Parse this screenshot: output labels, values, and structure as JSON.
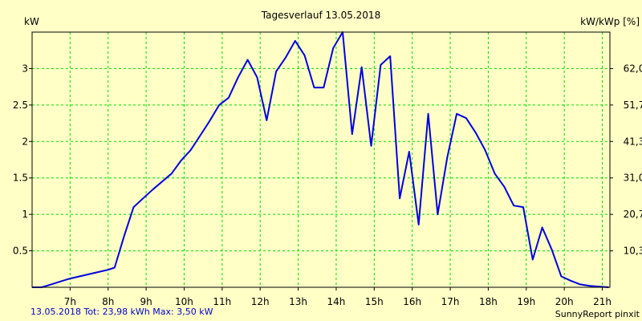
{
  "colors": {
    "background": "#ffffc6",
    "grid": "#00dd00",
    "series": "#0000dd",
    "axis": "#000000",
    "footer_left": "#0000c8"
  },
  "chart_data": {
    "type": "line",
    "title": "Tagesverlauf 13.05.2018",
    "ylabel_left": "kW",
    "ylabel_right": "kW/kWp [%]",
    "footer_left": "13.05.2018 Tot: 23,98 kWh Max: 3,50 kW",
    "footer_right": "SunnyReport pinxit",
    "xlim": [
      6.0,
      21.2
    ],
    "ylim": [
      0,
      3.5
    ],
    "grid": true,
    "x_ticks": [
      {
        "value": 7,
        "label": "7h"
      },
      {
        "value": 8,
        "label": "8h"
      },
      {
        "value": 9,
        "label": "9h"
      },
      {
        "value": 10,
        "label": "10h"
      },
      {
        "value": 11,
        "label": "11h"
      },
      {
        "value": 12,
        "label": "12h"
      },
      {
        "value": 13,
        "label": "13h"
      },
      {
        "value": 14,
        "label": "14h"
      },
      {
        "value": 15,
        "label": "15h"
      },
      {
        "value": 16,
        "label": "16h"
      },
      {
        "value": 17,
        "label": "17h"
      },
      {
        "value": 18,
        "label": "18h"
      },
      {
        "value": 19,
        "label": "19h"
      },
      {
        "value": 20,
        "label": "20h"
      },
      {
        "value": 21,
        "label": "21h"
      }
    ],
    "y_ticks_left": [
      {
        "value": 0.5,
        "label": "0.5"
      },
      {
        "value": 1.0,
        "label": "1"
      },
      {
        "value": 1.5,
        "label": "1.5"
      },
      {
        "value": 2.0,
        "label": "2"
      },
      {
        "value": 2.5,
        "label": "2.5"
      },
      {
        "value": 3.0,
        "label": "3"
      }
    ],
    "y_ticks_right": [
      {
        "value": 0.5,
        "label": "10,3"
      },
      {
        "value": 1.0,
        "label": "20,7"
      },
      {
        "value": 1.5,
        "label": "31,0"
      },
      {
        "value": 2.0,
        "label": "41,3"
      },
      {
        "value": 2.5,
        "label": "51,7"
      },
      {
        "value": 3.0,
        "label": "62,0"
      }
    ],
    "series": [
      {
        "x": [
          6.0,
          6.25,
          6.5,
          6.75,
          7.0,
          7.25,
          7.5,
          7.75,
          8.0,
          8.17,
          8.42,
          8.67,
          8.92,
          9.17,
          9.42,
          9.67,
          9.92,
          10.17,
          10.42,
          10.67,
          10.92,
          11.17,
          11.42,
          11.67,
          11.92,
          12.17,
          12.42,
          12.67,
          12.92,
          13.17,
          13.42,
          13.67,
          13.92,
          14.17,
          14.42,
          14.67,
          14.92,
          15.17,
          15.42,
          15.67,
          15.92,
          16.17,
          16.42,
          16.67,
          16.92,
          17.17,
          17.42,
          17.67,
          17.92,
          18.17,
          18.42,
          18.67,
          18.92,
          19.17,
          19.42,
          19.67,
          19.92,
          20.17,
          20.42,
          20.67,
          20.92,
          21.17
        ],
        "y": [
          0.0,
          0.0,
          0.04,
          0.08,
          0.12,
          0.15,
          0.18,
          0.21,
          0.24,
          0.27,
          0.7,
          1.1,
          1.22,
          1.34,
          1.45,
          1.56,
          1.74,
          1.88,
          2.08,
          2.28,
          2.5,
          2.6,
          2.88,
          3.12,
          2.88,
          2.29,
          2.96,
          3.15,
          3.38,
          3.18,
          2.74,
          2.74,
          3.28,
          3.5,
          2.1,
          3.02,
          1.94,
          3.05,
          3.17,
          1.22,
          1.86,
          0.86,
          2.38,
          1.0,
          1.78,
          2.38,
          2.32,
          2.12,
          1.88,
          1.56,
          1.38,
          1.12,
          1.1,
          0.38,
          0.82,
          0.52,
          0.15,
          0.09,
          0.04,
          0.02,
          0.01,
          0.0
        ]
      }
    ]
  }
}
